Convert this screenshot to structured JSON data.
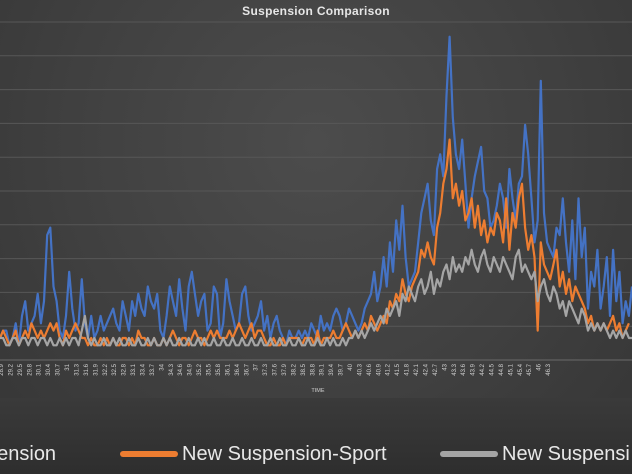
{
  "chart_data": {
    "type": "line",
    "title": "Suspension Comparison",
    "xlabel": "TIME",
    "ylabel": "",
    "grid": true,
    "legend_position": "bottom",
    "x_tick_labels": [
      "28.9",
      "29.2",
      "29.5",
      "29.8",
      "30.1",
      "30.4",
      "30.7",
      "31",
      "31.3",
      "31.6",
      "31.9",
      "32.2",
      "32.5",
      "32.8",
      "33.1",
      "33.4",
      "33.7",
      "34",
      "34.3",
      "34.6",
      "34.9",
      "35.2",
      "35.5",
      "35.8",
      "36.1",
      "36.4",
      "36.7",
      "37",
      "37.3",
      "37.6",
      "37.9",
      "38.2",
      "38.5",
      "38.8",
      "39.1",
      "39.4",
      "39.7",
      "40",
      "40.3",
      "40.6",
      "40.9",
      "41.2",
      "41.5",
      "41.8",
      "42.1",
      "42.4",
      "42.7",
      "43",
      "43.3",
      "43.6",
      "43.9",
      "44.2",
      "44.5",
      "44.8",
      "45.1",
      "45.4",
      "45.7",
      "46",
      "46.3"
    ],
    "x_start": 28.9,
    "x_step": 0.1,
    "colors": {
      "blue": "#4472c4",
      "orange": "#ed7d31",
      "gray": "#a5a5a5"
    },
    "series": [
      {
        "name": "Suspension",
        "legend_visible_text": "pension",
        "color": "#4472c4",
        "values": [
          3,
          4,
          4,
          2,
          3,
          5,
          2,
          6,
          8,
          4,
          5,
          6,
          9,
          5,
          8,
          17,
          18,
          10,
          8,
          4,
          3,
          6,
          12,
          7,
          4,
          5,
          11,
          5,
          3,
          6,
          3,
          4,
          6,
          4,
          5,
          6,
          7,
          5,
          4,
          8,
          6,
          4,
          8,
          6,
          9,
          7,
          6,
          10,
          8,
          7,
          9,
          4,
          3,
          6,
          10,
          8,
          6,
          11,
          7,
          4,
          10,
          12,
          9,
          6,
          8,
          9,
          4,
          5,
          10,
          9,
          3,
          5,
          11,
          8,
          6,
          4,
          5,
          9,
          10,
          6,
          4,
          5,
          6,
          8,
          4,
          6,
          3,
          5,
          6,
          4,
          3,
          2,
          4,
          3,
          3,
          4,
          3,
          4,
          3,
          5,
          4,
          3,
          6,
          4,
          5,
          4,
          6,
          7,
          6,
          4,
          5,
          7,
          6,
          5,
          4,
          5,
          7,
          8,
          9,
          12,
          8,
          10,
          14,
          10,
          16,
          12,
          19,
          15,
          21,
          14,
          10,
          11,
          12,
          16,
          20,
          22,
          24,
          19,
          17,
          26,
          28,
          25,
          36,
          44,
          33,
          28,
          26,
          30,
          24,
          18,
          22,
          25,
          27,
          29,
          23,
          22,
          18,
          19,
          21,
          24,
          22,
          18,
          26,
          22,
          19,
          24,
          25,
          32,
          28,
          22,
          16,
          19,
          38,
          20,
          16,
          15,
          14,
          18,
          17,
          22,
          16,
          12,
          19,
          11,
          22,
          14,
          18,
          7,
          12,
          10,
          15,
          7,
          10,
          14,
          6,
          15,
          8,
          12,
          5,
          8,
          6,
          10
        ],
        "values_range_min_max": [
          0,
          44
        ]
      },
      {
        "name": "New Suspension-Sport",
        "color": "#ed7d31",
        "values": [
          3,
          4,
          3,
          2,
          3,
          4,
          2,
          3,
          4,
          3,
          5,
          4,
          3,
          4,
          3,
          4,
          5,
          4,
          5,
          3,
          2,
          4,
          3,
          4,
          5,
          4,
          3,
          3,
          2,
          3,
          2,
          2,
          3,
          2,
          3,
          2,
          3,
          2,
          2,
          3,
          3,
          2,
          3,
          2,
          4,
          3,
          3,
          2,
          2,
          3,
          2,
          2,
          3,
          2,
          3,
          4,
          3,
          2,
          3,
          3,
          2,
          3,
          4,
          3,
          3,
          2,
          3,
          4,
          3,
          4,
          3,
          3,
          3,
          4,
          3,
          4,
          5,
          4,
          3,
          4,
          5,
          3,
          4,
          4,
          3,
          2,
          2,
          3,
          2,
          2,
          3,
          2,
          3,
          3,
          3,
          3,
          2,
          3,
          3,
          3,
          2,
          4,
          2,
          3,
          3,
          3,
          4,
          3,
          3,
          4,
          5,
          4,
          3,
          4,
          3,
          4,
          5,
          4,
          6,
          5,
          4,
          5,
          6,
          5,
          8,
          7,
          9,
          8,
          11,
          9,
          8,
          10,
          11,
          12,
          15,
          14,
          16,
          14,
          13,
          18,
          20,
          24,
          26,
          30,
          22,
          24,
          21,
          23,
          19,
          20,
          22,
          18,
          21,
          17,
          19,
          16,
          18,
          17,
          20,
          19,
          16,
          22,
          15,
          20,
          18,
          22,
          24,
          18,
          15,
          17,
          14,
          4,
          16,
          13,
          12,
          11,
          13,
          15,
          10,
          12,
          9,
          11,
          8,
          10,
          9,
          8,
          7,
          5,
          6,
          4,
          5,
          4,
          5,
          4,
          5,
          6,
          4,
          5,
          3,
          4,
          5
        ],
        "values_range_min_max": [
          0,
          30
        ]
      },
      {
        "name": "New Suspension-Comfort",
        "legend_visible_text": "New Suspensi",
        "color": "#a5a5a5",
        "values": [
          3,
          3,
          2,
          2,
          3,
          3,
          2,
          3,
          3,
          2,
          3,
          3,
          2,
          3,
          3,
          2,
          3,
          2,
          2,
          3,
          2,
          3,
          2,
          3,
          3,
          2,
          4,
          6,
          3,
          2,
          3,
          2,
          2,
          3,
          2,
          2,
          3,
          2,
          3,
          2,
          2,
          3,
          2,
          2,
          3,
          2,
          2,
          3,
          2,
          3,
          2,
          2,
          3,
          2,
          3,
          2,
          2,
          3,
          2,
          2,
          3,
          2,
          2,
          3,
          2,
          3,
          2,
          2,
          3,
          2,
          2,
          3,
          2,
          2,
          3,
          2,
          2,
          3,
          2,
          2,
          3,
          2,
          2,
          3,
          2,
          2,
          3,
          2,
          2,
          3,
          2,
          2,
          3,
          2,
          2,
          3,
          2,
          2,
          3,
          2,
          2,
          3,
          2,
          2,
          3,
          2,
          3,
          2,
          2,
          3,
          2,
          3,
          3,
          4,
          3,
          4,
          3,
          4,
          5,
          4,
          5,
          6,
          5,
          7,
          6,
          7,
          8,
          6,
          9,
          8,
          10,
          9,
          8,
          10,
          11,
          9,
          10,
          12,
          9,
          11,
          10,
          12,
          13,
          11,
          14,
          12,
          13,
          12,
          14,
          13,
          15,
          13,
          12,
          14,
          15,
          13,
          12,
          14,
          13,
          12,
          14,
          13,
          12,
          11,
          14,
          15,
          12,
          13,
          12,
          11,
          12,
          8,
          10,
          11,
          9,
          8,
          10,
          9,
          7,
          8,
          6,
          8,
          7,
          6,
          5,
          7,
          6,
          4,
          5,
          4,
          5,
          4,
          5,
          4,
          3,
          4,
          3,
          4,
          3,
          4,
          3,
          3
        ],
        "values_range_min_max": [
          0,
          15
        ]
      }
    ],
    "ylim": [
      0,
      46
    ]
  }
}
